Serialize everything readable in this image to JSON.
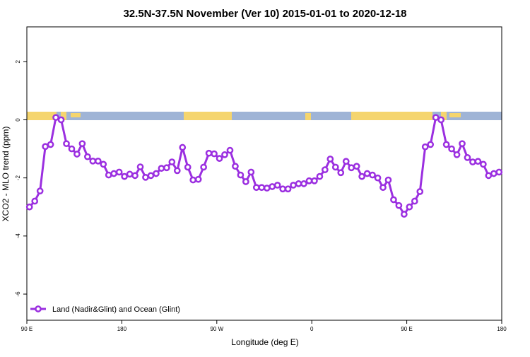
{
  "chart_data": {
    "type": "line",
    "title": "32.5N-37.5N November (Ver 10)   2015-01-01 to 2020-12-18",
    "x_label": "Longitude (deg E)",
    "y_label": "XCO2 - MLO trend (ppm)",
    "xlim": [
      90,
      540
    ],
    "ylim": [
      -6.9,
      3.2
    ],
    "xticks": [
      {
        "value": 90,
        "label": "90 E"
      },
      180,
      {
        "value": 270,
        "label": "90 W"
      },
      {
        "value": 360,
        "label": "0"
      },
      {
        "value": 450,
        "label": "90 E"
      },
      {
        "value": 540,
        "label": "180"
      }
    ],
    "yticks": [
      -6,
      -4,
      -2,
      0,
      2
    ],
    "legend": "bottom-left",
    "x": [
      92.5,
      97.5,
      102.5,
      107.5,
      112.5,
      117.5,
      122.5,
      127.5,
      132.5,
      137.5,
      142.5,
      147.5,
      152.5,
      157.5,
      162.5,
      167.5,
      172.5,
      177.5,
      182.5,
      187.5,
      192.5,
      197.5,
      202.5,
      207.5,
      212.5,
      217.5,
      222.5,
      227.5,
      232.5,
      237.5,
      242.5,
      247.5,
      252.5,
      257.5,
      262.5,
      267.5,
      272.5,
      277.5,
      282.5,
      287.5,
      292.5,
      297.5,
      302.5,
      307.5,
      312.5,
      317.5,
      322.5,
      327.5,
      332.5,
      337.5,
      342.5,
      347.5,
      352.5,
      357.5,
      362.5,
      367.5,
      372.5,
      377.5,
      382.5,
      387.5,
      392.5,
      397.5,
      402.5,
      407.5,
      412.5,
      417.5,
      422.5,
      427.5,
      432.5,
      437.5,
      442.5,
      447.5,
      452.5,
      457.5,
      462.5,
      467.5,
      472.5,
      477.5,
      482.5,
      487.5,
      492.5,
      497.5,
      502.5,
      507.5,
      512.5,
      517.5,
      522.5,
      527.5,
      532.5,
      537.5
    ],
    "series": [
      {
        "name": "Land (Nadir&Glint) and Ocean (Glint)",
        "color": "#9b2fe0",
        "values": [
          -3.0,
          -2.8,
          -2.45,
          -0.92,
          -0.85,
          0.08,
          0.0,
          -0.82,
          -1.0,
          -1.18,
          -0.82,
          -1.27,
          -1.42,
          -1.42,
          -1.53,
          -1.9,
          -1.85,
          -1.8,
          -1.95,
          -1.87,
          -1.92,
          -1.62,
          -1.98,
          -1.92,
          -1.85,
          -1.67,
          -1.65,
          -1.45,
          -1.75,
          -0.95,
          -1.63,
          -2.07,
          -2.05,
          -1.63,
          -1.15,
          -1.17,
          -1.33,
          -1.2,
          -1.05,
          -1.6,
          -1.9,
          -2.13,
          -1.8,
          -2.33,
          -2.33,
          -2.35,
          -2.3,
          -2.25,
          -2.38,
          -2.38,
          -2.25,
          -2.2,
          -2.2,
          -2.1,
          -2.1,
          -1.95,
          -1.72,
          -1.35,
          -1.63,
          -1.82,
          -1.43,
          -1.65,
          -1.6,
          -1.95,
          -1.85,
          -1.9,
          -2.0,
          -2.33,
          -2.07,
          -2.75,
          -2.95,
          -3.25,
          -3.0,
          -2.8,
          -2.47,
          -0.93,
          -0.85,
          0.08,
          0.0,
          -0.85,
          -1.0,
          -1.2,
          -0.82,
          -1.3,
          -1.45,
          -1.43,
          -1.53,
          -1.92,
          -1.85,
          -1.8
        ]
      }
    ]
  }
}
